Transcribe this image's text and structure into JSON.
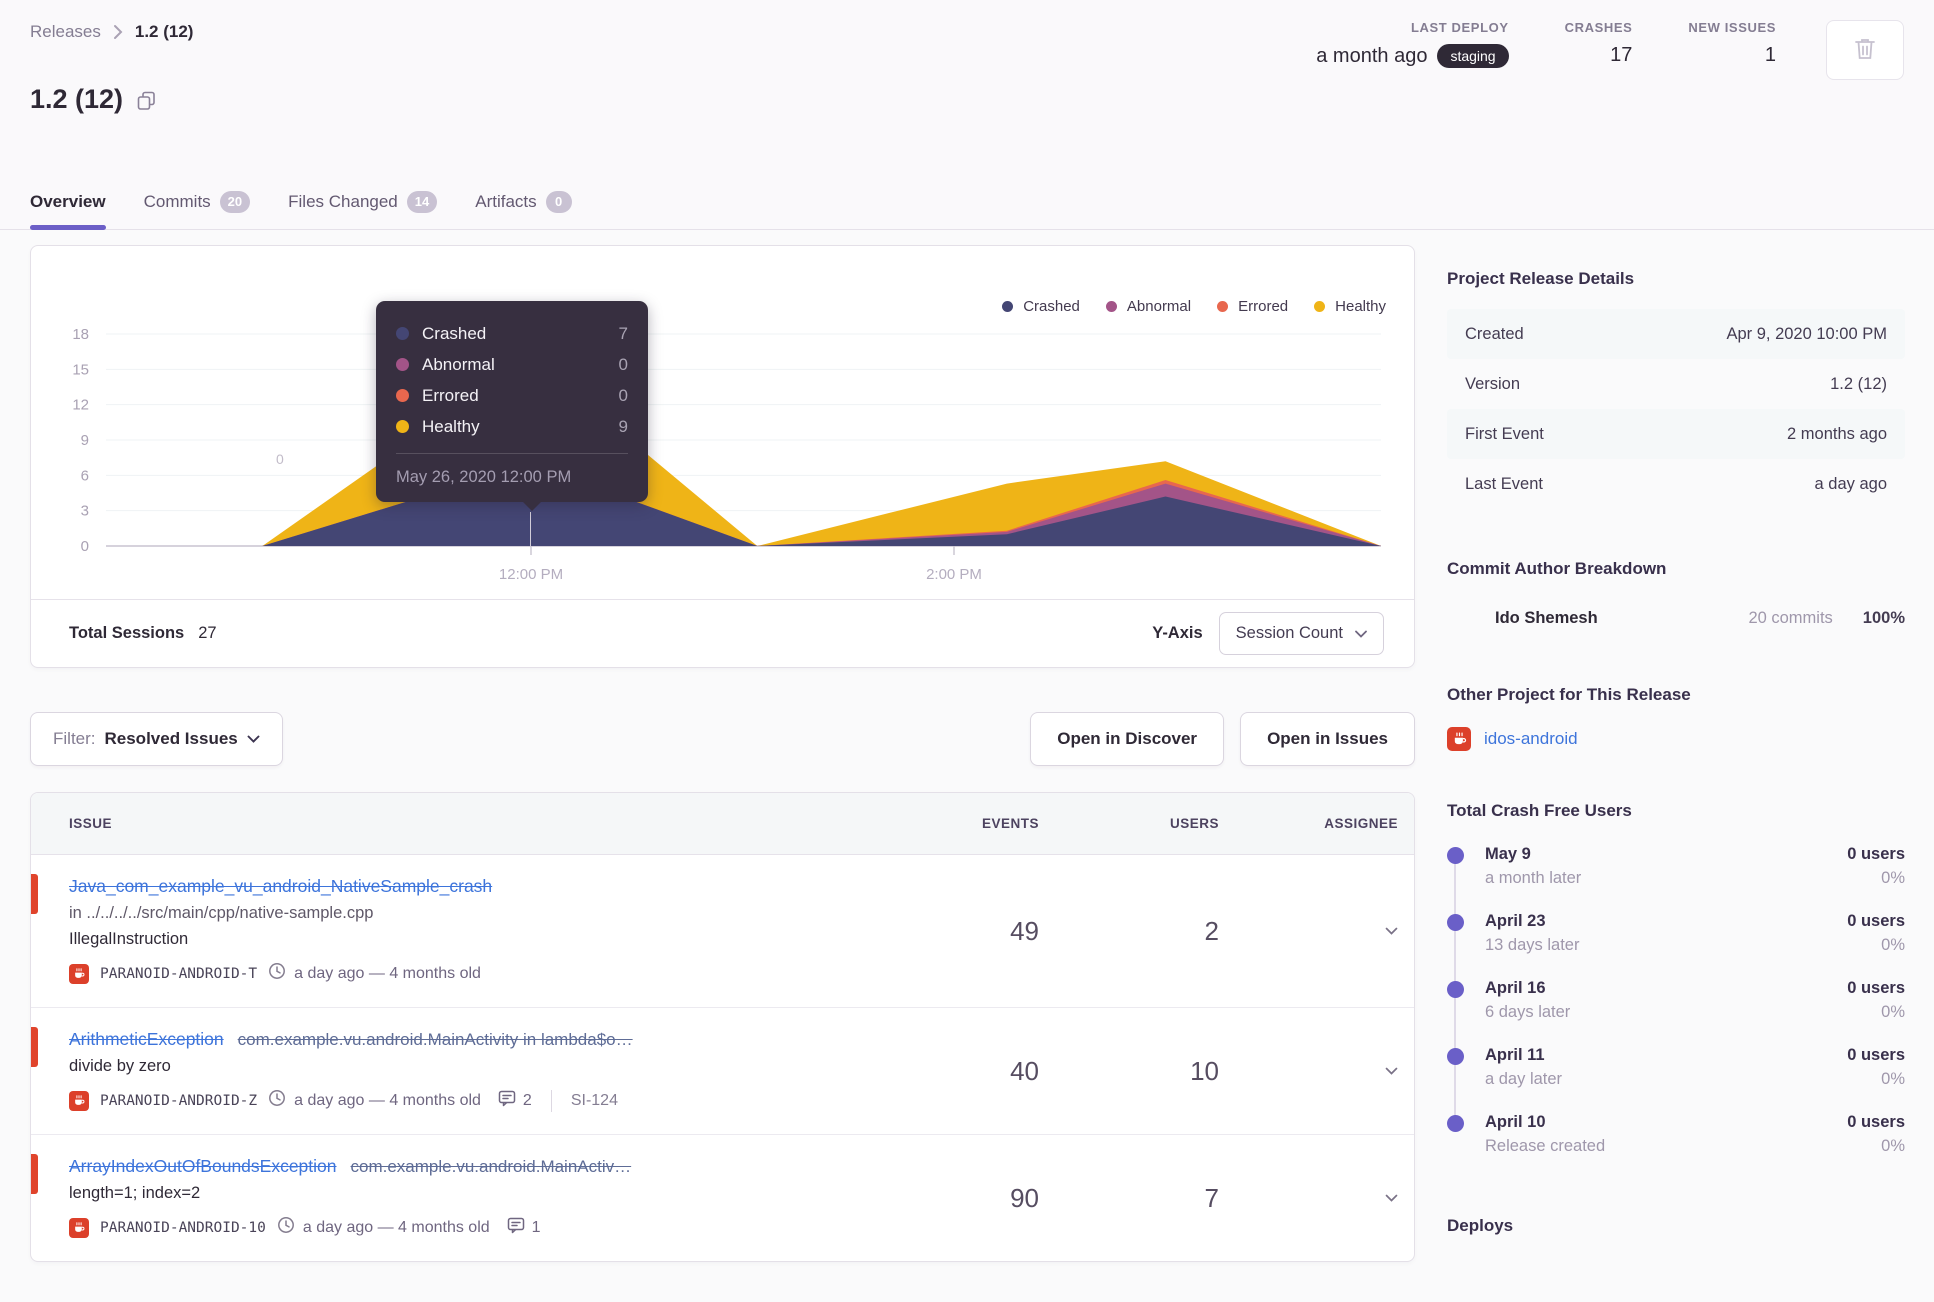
{
  "breadcrumb": {
    "root": "Releases",
    "current": "1.2 (12)"
  },
  "header": {
    "title": "1.2 (12)",
    "stats": [
      {
        "label": "LAST DEPLOY",
        "value": "a month ago",
        "badge": "staging"
      },
      {
        "label": "CRASHES",
        "value": "17"
      },
      {
        "label": "NEW ISSUES",
        "value": "1"
      }
    ]
  },
  "tabs": [
    {
      "label": "Overview"
    },
    {
      "label": "Commits",
      "badge": "20"
    },
    {
      "label": "Files Changed",
      "badge": "14"
    },
    {
      "label": "Artifacts",
      "badge": "0"
    }
  ],
  "chart_card": {
    "legend": [
      {
        "label": "Crashed"
      },
      {
        "label": "Abnormal"
      },
      {
        "label": "Errored"
      },
      {
        "label": "Healthy"
      }
    ],
    "tooltip": {
      "rows": [
        {
          "label": "Crashed",
          "value": "7"
        },
        {
          "label": "Abnormal",
          "value": "0"
        },
        {
          "label": "Errored",
          "value": "0"
        },
        {
          "label": "Healthy",
          "value": "9"
        }
      ],
      "date": "May 26, 2020 12:00 PM"
    },
    "watermark": "0",
    "footer": {
      "total_label": "Total Sessions",
      "total_value": "27",
      "yaxis_label": "Y-Axis",
      "yaxis_value": "Session Count"
    }
  },
  "chart_data": {
    "type": "area",
    "stacked": true,
    "title": "Release session counts over time",
    "ylabel": "Session Count",
    "ylim": [
      0,
      18
    ],
    "yticks": [
      0,
      3,
      6,
      9,
      12,
      15,
      18
    ],
    "xticks": [
      {
        "label": "12:00 PM",
        "hour": 12
      },
      {
        "label": "2:00 PM",
        "hour": 14
      }
    ],
    "legend_position": "top-right",
    "series_order": [
      "Crashed",
      "Abnormal",
      "Errored",
      "Healthy"
    ],
    "series_colors": {
      "Crashed": "#444674",
      "Abnormal": "#a35488",
      "Errored": "#e8674e",
      "Healthy": "#efb417"
    },
    "points": [
      {
        "hour": 9.95,
        "Crashed": 0,
        "Abnormal": 0,
        "Errored": 0,
        "Healthy": 0
      },
      {
        "hour": 10.73,
        "Crashed": 0,
        "Abnormal": 0,
        "Errored": 0,
        "Healthy": 0
      },
      {
        "hour": 12.0,
        "Crashed": 7,
        "Abnormal": 0,
        "Errored": 0,
        "Healthy": 9
      },
      {
        "hour": 13.07,
        "Crashed": 0,
        "Abnormal": 0,
        "Errored": 0,
        "Healthy": 0
      },
      {
        "hour": 14.25,
        "Crashed": 1,
        "Abnormal": 0.2,
        "Errored": 0.1,
        "Healthy": 4
      },
      {
        "hour": 15.0,
        "Crashed": 4.2,
        "Abnormal": 1.1,
        "Errored": 0.3,
        "Healthy": 1.6
      },
      {
        "hour": 16.02,
        "Crashed": 0,
        "Abnormal": 0,
        "Errored": 0,
        "Healthy": 0
      }
    ],
    "highlighted_point": {
      "date": "May 26, 2020 12:00 PM",
      "Crashed": 7,
      "Abnormal": 0,
      "Errored": 0,
      "Healthy": 9
    }
  },
  "filter_bar": {
    "filter_label": "Filter:",
    "filter_value": "Resolved Issues",
    "open_discover": "Open in Discover",
    "open_issues": "Open in Issues"
  },
  "issues_table": {
    "columns": [
      "ISSUE",
      "EVENTS",
      "USERS",
      "ASSIGNEE"
    ],
    "rows": [
      {
        "title": "Java_com_example_vu_android_NativeSample_crash",
        "location": "in ../../../../src/main/cpp/native-sample.cpp",
        "message": "IllegalInstruction",
        "project": "PARANOID-ANDROID-T",
        "age": "a day ago — 4 months old",
        "events": "49",
        "users": "2"
      },
      {
        "title": "ArithmeticException",
        "culprit": "com.example.vu.android.MainActivity in lambda$o…",
        "message": "divide by zero",
        "project": "PARANOID-ANDROID-Z",
        "age": "a day ago — 4 months old",
        "comments": "2",
        "annotation": "SI-124",
        "events": "40",
        "users": "10"
      },
      {
        "title": "ArrayIndexOutOfBoundsException",
        "culprit": "com.example.vu.android.MainActiv…",
        "message": "length=1; index=2",
        "project": "PARANOID-ANDROID-10",
        "age": "a day ago — 4 months old",
        "comments": "1",
        "events": "90",
        "users": "7"
      }
    ]
  },
  "sidebar": {
    "release_details": {
      "title": "Project Release Details",
      "rows": [
        {
          "label": "Created",
          "value": "Apr 9, 2020 10:00 PM"
        },
        {
          "label": "Version",
          "value": "1.2 (12)"
        },
        {
          "label": "First Event",
          "value": "2 months ago"
        },
        {
          "label": "Last Event",
          "value": "a day ago"
        }
      ]
    },
    "commit_authors": {
      "title": "Commit Author Breakdown",
      "author": "Ido Shemesh",
      "commits": "20 commits",
      "percent": "100%"
    },
    "other_project": {
      "title": "Other Project for This Release",
      "link": "idos-android"
    },
    "crash_free": {
      "title": "Total Crash Free Users",
      "items": [
        {
          "date": "May 9",
          "sub": "a month later",
          "users": "0 users",
          "pct": "0%"
        },
        {
          "date": "April 23",
          "sub": "13 days later",
          "users": "0 users",
          "pct": "0%"
        },
        {
          "date": "April 16",
          "sub": "6 days later",
          "users": "0 users",
          "pct": "0%"
        },
        {
          "date": "April 11",
          "sub": "a day later",
          "users": "0 users",
          "pct": "0%"
        },
        {
          "date": "April 10",
          "sub": "Release created",
          "users": "0 users",
          "pct": "0%"
        }
      ]
    },
    "deploys": {
      "title": "Deploys"
    }
  },
  "colors": {
    "accent": "#6c5fc7",
    "link": "#3d74db",
    "alert_red": "#e0442c",
    "badge_dark": "#2f2936"
  }
}
